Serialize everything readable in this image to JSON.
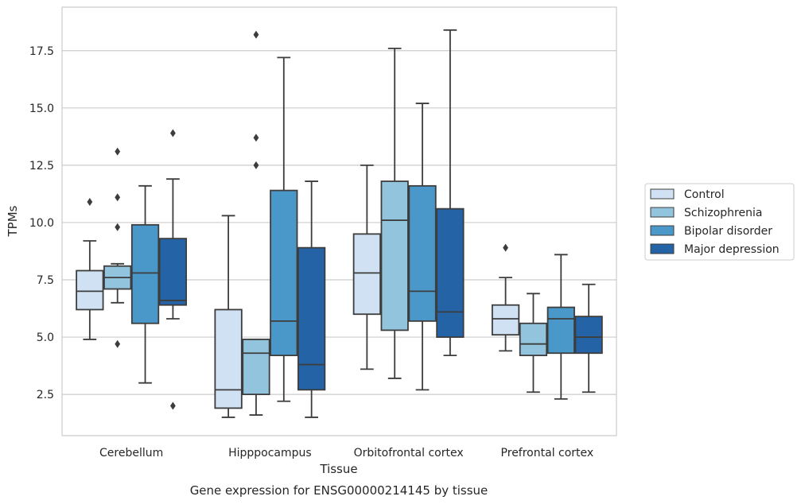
{
  "chart_data": {
    "type": "box",
    "title": "",
    "caption": "Gene expression for ENSG00000214145 by tissue",
    "xlabel": "Tissue",
    "ylabel": "TPMs",
    "ylim": [
      0.7,
      19.4
    ],
    "yticks": [
      "2.5",
      "5.0",
      "7.5",
      "10.0",
      "12.5",
      "15.0",
      "17.5"
    ],
    "ytick_values": [
      2.5,
      5.0,
      7.5,
      10.0,
      12.5,
      15.0,
      17.5
    ],
    "grid": "horizontal",
    "legend_position": "right",
    "categories": [
      "Cerebellum",
      "Hipppocampus",
      "Orbitofrontal cortex",
      "Prefrontal cortex"
    ],
    "series": [
      {
        "name": "Control",
        "color": "#cfe1f2",
        "boxes": [
          {
            "whisker_low": 4.9,
            "q1": 6.2,
            "median": 7.0,
            "q3": 7.9,
            "whisker_high": 9.2,
            "outliers": [
              10.9
            ]
          },
          {
            "whisker_low": 1.5,
            "q1": 1.9,
            "median": 2.7,
            "q3": 6.2,
            "whisker_high": 10.3,
            "outliers": []
          },
          {
            "whisker_low": 3.6,
            "q1": 6.0,
            "median": 7.8,
            "q3": 9.5,
            "whisker_high": 12.5,
            "outliers": []
          },
          {
            "whisker_low": 4.4,
            "q1": 5.1,
            "median": 5.8,
            "q3": 6.4,
            "whisker_high": 7.6,
            "outliers": [
              8.9
            ]
          }
        ]
      },
      {
        "name": "Schizophrenia",
        "color": "#93c4de",
        "boxes": [
          {
            "whisker_low": 6.5,
            "q1": 7.1,
            "median": 7.6,
            "q3": 8.1,
            "whisker_high": 8.2,
            "outliers": [
              13.1,
              11.1,
              9.8,
              4.7
            ]
          },
          {
            "whisker_low": 1.6,
            "q1": 2.5,
            "median": 4.3,
            "q3": 4.9,
            "whisker_high": 4.9,
            "outliers": [
              18.2,
              13.7,
              12.5
            ]
          },
          {
            "whisker_low": 3.2,
            "q1": 5.3,
            "median": 10.1,
            "q3": 11.8,
            "whisker_high": 17.6,
            "outliers": []
          },
          {
            "whisker_low": 2.6,
            "q1": 4.2,
            "median": 4.7,
            "q3": 5.6,
            "whisker_high": 6.9,
            "outliers": []
          }
        ]
      },
      {
        "name": "Bipolar disorder",
        "color": "#4a98c9",
        "boxes": [
          {
            "whisker_low": 3.0,
            "q1": 5.6,
            "median": 7.8,
            "q3": 9.9,
            "whisker_high": 11.6,
            "outliers": []
          },
          {
            "whisker_low": 2.2,
            "q1": 4.2,
            "median": 5.7,
            "q3": 11.4,
            "whisker_high": 17.2,
            "outliers": []
          },
          {
            "whisker_low": 2.7,
            "q1": 5.7,
            "median": 7.0,
            "q3": 11.6,
            "whisker_high": 15.2,
            "outliers": []
          },
          {
            "whisker_low": 2.3,
            "q1": 4.3,
            "median": 5.8,
            "q3": 6.3,
            "whisker_high": 8.6,
            "outliers": []
          }
        ]
      },
      {
        "name": "Major depression",
        "color": "#2463a6",
        "boxes": [
          {
            "whisker_low": 5.8,
            "q1": 6.4,
            "median": 6.6,
            "q3": 9.3,
            "whisker_high": 11.9,
            "outliers": [
              13.9,
              2.0
            ]
          },
          {
            "whisker_low": 1.5,
            "q1": 2.7,
            "median": 3.8,
            "q3": 8.9,
            "whisker_high": 11.8,
            "outliers": []
          },
          {
            "whisker_low": 4.2,
            "q1": 5.0,
            "median": 6.1,
            "q3": 10.6,
            "whisker_high": 18.4,
            "outliers": []
          },
          {
            "whisker_low": 2.6,
            "q1": 4.3,
            "median": 5.0,
            "q3": 5.9,
            "whisker_high": 7.3,
            "outliers": []
          }
        ]
      }
    ]
  },
  "colors": {
    "grid": "#cccccc",
    "frame": "#cccccc",
    "box_edge": "#3d3d3d",
    "text": "#262626"
  }
}
